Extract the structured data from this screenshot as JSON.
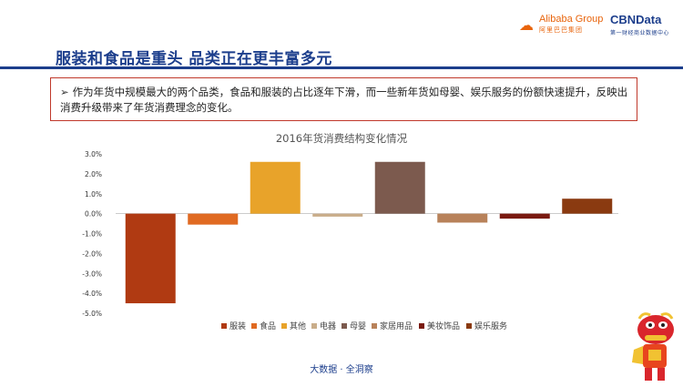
{
  "header": {
    "title": "服装和食品是重头 品类正在更丰富多元",
    "logo_alibaba": {
      "name": "Alibaba Group",
      "subtitle": "阿里巴巴集团",
      "icon": "alibaba-logo-icon"
    },
    "logo_cbn": {
      "name": "CBNData",
      "subtitle": "第一财经商业数据中心"
    }
  },
  "callout": {
    "bullet": "➢",
    "text": "作为年货中规模最大的两个品类，食品和服装的占比逐年下滑，而一些新年货如母婴、娱乐服务的份额快速提升，反映出消费升级带来了年货消费理念的变化。"
  },
  "chart_data": {
    "type": "bar",
    "title": "2016年货消费结构变化情况",
    "categories": [
      "服装",
      "食品",
      "其他",
      "电器",
      "母婴",
      "家居用品",
      "美妆饰品",
      "娱乐服务"
    ],
    "values": [
      -4.5,
      -0.55,
      2.6,
      -0.15,
      2.6,
      -0.45,
      -0.25,
      0.75
    ],
    "colors": [
      "#b03a12",
      "#e06a22",
      "#e8a32a",
      "#c9ad8a",
      "#7c5a4e",
      "#b8825a",
      "#7a1a10",
      "#8a3a10"
    ],
    "ylim": [
      -5,
      3
    ],
    "yticks": [
      "3.0%",
      "2.0%",
      "1.0%",
      "0.0%",
      "-1.0%",
      "-2.0%",
      "-3.0%",
      "-4.0%",
      "-5.0%"
    ],
    "ytick_values": [
      3,
      2,
      1,
      0,
      -1,
      -2,
      -3,
      -4,
      -5
    ],
    "legend_position": "bottom",
    "grid": false
  },
  "footer": {
    "text": "大数据 · 全洞察"
  },
  "mascot": {
    "icon": "lion-dance-mascot-icon"
  }
}
